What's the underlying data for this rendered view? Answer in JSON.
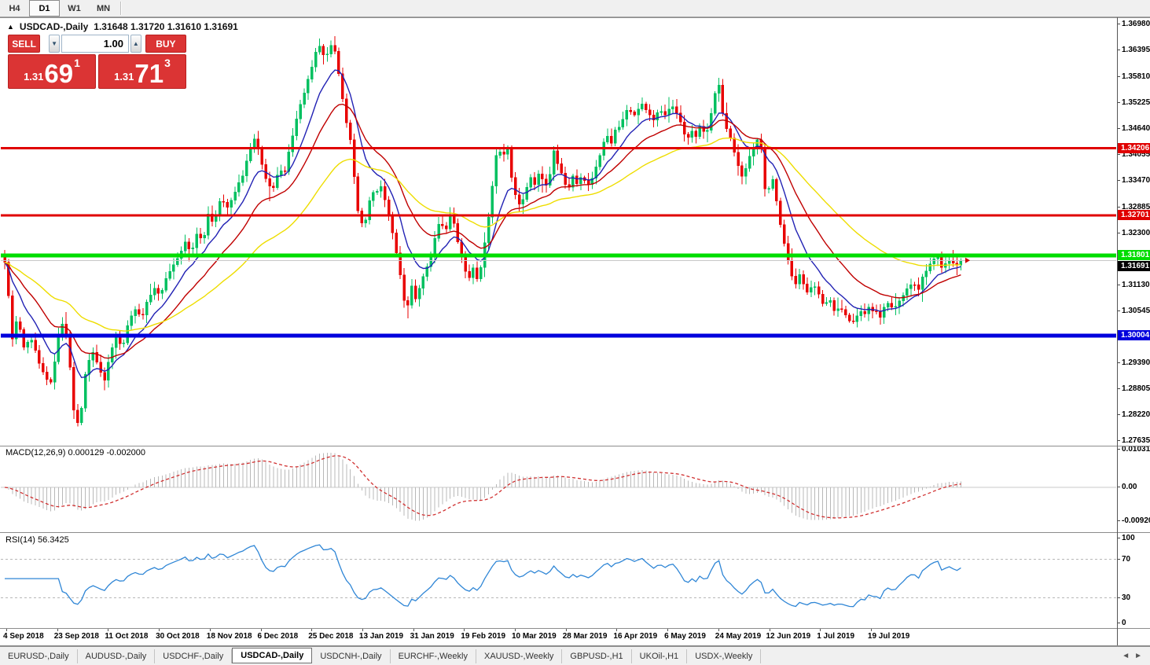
{
  "toolbar": {
    "timeframes": [
      {
        "label": "H4",
        "active": false
      },
      {
        "label": "D1",
        "active": true
      },
      {
        "label": "W1",
        "active": false
      },
      {
        "label": "MN",
        "active": false
      }
    ]
  },
  "titlebar": {
    "symbol": "USDCAD-,Daily",
    "ohlc": "1.31648 1.31720 1.31610 1.31691"
  },
  "trade": {
    "sell_label": "SELL",
    "buy_label": "BUY",
    "volume": "1.00",
    "sell_big": {
      "prefix": "1.31",
      "main": "69",
      "sup": "1"
    },
    "buy_big": {
      "prefix": "1.31",
      "main": "71",
      "sup": "3"
    },
    "button_color": "#DB3434"
  },
  "chart_data": {
    "type": "candlestick",
    "symbol": "USDCAD-,Daily",
    "bars": 250,
    "candle_colors": {
      "up": "#00C060",
      "down": "#E80000"
    },
    "price_axis_ticks": [
      {
        "v": 1.3698,
        "t": "1.36980"
      },
      {
        "v": 1.36395,
        "t": "1.36395"
      },
      {
        "v": 1.3581,
        "t": "1.35810"
      },
      {
        "v": 1.35225,
        "t": "1.35225"
      },
      {
        "v": 1.3464,
        "t": "1.34640"
      },
      {
        "v": 1.34055,
        "t": "1.34055"
      },
      {
        "v": 1.3347,
        "t": "1.33470"
      },
      {
        "v": 1.32885,
        "t": "1.32885"
      },
      {
        "v": 1.323,
        "t": "1.32300"
      },
      {
        "v": 1.3113,
        "t": "1.31130"
      },
      {
        "v": 1.30545,
        "t": "1.30545"
      },
      {
        "v": 1.2939,
        "t": "1.29390"
      },
      {
        "v": 1.28805,
        "t": "1.28805"
      },
      {
        "v": 1.2822,
        "t": "1.28220"
      },
      {
        "v": 1.27635,
        "t": "1.27635"
      }
    ],
    "hlines": [
      {
        "price": 1.34206,
        "label": "1.34206",
        "color": "#E00000",
        "width": 3
      },
      {
        "price": 1.32701,
        "label": "1.32701",
        "color": "#E00000",
        "width": 3
      },
      {
        "price": 1.31801,
        "label": "1.31801",
        "color": "#00DD00",
        "width": 5
      },
      {
        "price": 1.30004,
        "label": "1.30004",
        "color": "#0000DD",
        "width": 5
      }
    ],
    "current_price": {
      "value": 1.31691,
      "label": "1.31691",
      "line_color": "#C8C8C8",
      "chip_bg": "#000000"
    },
    "moving_averages": [
      {
        "period": 10,
        "color": "#2222B4"
      },
      {
        "period": 22,
        "color": "#C00000"
      },
      {
        "period": 50,
        "color": "#EEDD00"
      }
    ],
    "date_ticks": [
      "4 Sep 2018",
      "23 Sep 2018",
      "11 Oct 2018",
      "30 Oct 2018",
      "18 Nov 2018",
      "6 Dec 2018",
      "25 Dec 2018",
      "13 Jan 2019",
      "31 Jan 2019",
      "19 Feb 2019",
      "10 Mar 2019",
      "28 Mar 2019",
      "16 Apr 2019",
      "6 May 2019",
      "24 May 2019",
      "12 Jun 2019",
      "1 Jul 2019",
      "19 Jul 2019"
    ],
    "price_anchors": [
      [
        0,
        1.319
      ],
      [
        8,
        1.316
      ],
      [
        15,
        1.2985
      ],
      [
        22,
        1.304
      ],
      [
        30,
        1.2975
      ],
      [
        40,
        1.2995
      ],
      [
        50,
        1.294
      ],
      [
        58,
        1.2905
      ],
      [
        66,
        1.289
      ],
      [
        74,
        1.3005
      ],
      [
        82,
        1.3035
      ],
      [
        89,
        1.293
      ],
      [
        96,
        1.279
      ],
      [
        103,
        1.2825
      ],
      [
        110,
        1.294
      ],
      [
        118,
        1.296
      ],
      [
        126,
        1.2935
      ],
      [
        132,
        1.289
      ],
      [
        140,
        1.2955
      ],
      [
        148,
        1.3
      ],
      [
        156,
        1.2975
      ],
      [
        164,
        1.304
      ],
      [
        172,
        1.306
      ],
      [
        180,
        1.3035
      ],
      [
        188,
        1.308
      ],
      [
        196,
        1.311
      ],
      [
        204,
        1.3085
      ],
      [
        212,
        1.313
      ],
      [
        220,
        1.3155
      ],
      [
        228,
        1.318
      ],
      [
        236,
        1.321
      ],
      [
        244,
        1.319
      ],
      [
        252,
        1.324
      ],
      [
        258,
        1.3205
      ],
      [
        265,
        1.3275
      ],
      [
        272,
        1.325
      ],
      [
        280,
        1.3305
      ],
      [
        290,
        1.329
      ],
      [
        300,
        1.333
      ],
      [
        310,
        1.3365
      ],
      [
        318,
        1.342
      ],
      [
        325,
        1.345
      ],
      [
        332,
        1.339
      ],
      [
        340,
        1.3345
      ],
      [
        348,
        1.333
      ],
      [
        355,
        1.3375
      ],
      [
        362,
        1.336
      ],
      [
        370,
        1.3435
      ],
      [
        378,
        1.349
      ],
      [
        386,
        1.354
      ],
      [
        394,
        1.359
      ],
      [
        401,
        1.363
      ],
      [
        408,
        1.365
      ],
      [
        414,
        1.362
      ],
      [
        420,
        1.3655
      ],
      [
        427,
        1.364
      ],
      [
        433,
        1.356
      ],
      [
        440,
        1.348
      ],
      [
        447,
        1.343
      ],
      [
        453,
        1.33
      ],
      [
        458,
        1.3265
      ],
      [
        463,
        1.3235
      ],
      [
        468,
        1.329
      ],
      [
        473,
        1.333
      ],
      [
        478,
        1.331
      ],
      [
        483,
        1.334
      ],
      [
        490,
        1.33
      ],
      [
        497,
        1.325
      ],
      [
        503,
        1.32
      ],
      [
        508,
        1.315
      ],
      [
        513,
        1.3085
      ],
      [
        518,
        1.306
      ],
      [
        524,
        1.311
      ],
      [
        530,
        1.308
      ],
      [
        536,
        1.3125
      ],
      [
        542,
        1.315
      ],
      [
        548,
        1.318
      ],
      [
        554,
        1.323
      ],
      [
        560,
        1.3255
      ],
      [
        566,
        1.323
      ],
      [
        572,
        1.3275
      ],
      [
        578,
        1.3245
      ],
      [
        584,
        1.32
      ],
      [
        590,
        1.316
      ],
      [
        596,
        1.313
      ],
      [
        602,
        1.3155
      ],
      [
        608,
        1.312
      ],
      [
        614,
        1.318
      ],
      [
        620,
        1.325
      ],
      [
        626,
        1.333
      ],
      [
        632,
        1.342
      ],
      [
        639,
        1.34
      ],
      [
        645,
        1.343
      ],
      [
        651,
        1.3355
      ],
      [
        657,
        1.331
      ],
      [
        663,
        1.329
      ],
      [
        669,
        1.333
      ],
      [
        675,
        1.336
      ],
      [
        681,
        1.334
      ],
      [
        687,
        1.337
      ],
      [
        693,
        1.3335
      ],
      [
        699,
        1.3355
      ],
      [
        705,
        1.3415
      ],
      [
        711,
        1.338
      ],
      [
        717,
        1.335
      ],
      [
        723,
        1.333
      ],
      [
        729,
        1.336
      ],
      [
        735,
        1.334
      ],
      [
        741,
        1.3365
      ],
      [
        747,
        1.333
      ],
      [
        753,
        1.3355
      ],
      [
        759,
        1.338
      ],
      [
        765,
        1.342
      ],
      [
        771,
        1.345
      ],
      [
        777,
        1.343
      ],
      [
        783,
        1.346
      ],
      [
        791,
        1.348
      ],
      [
        799,
        1.351
      ],
      [
        807,
        1.3495
      ],
      [
        815,
        1.352
      ],
      [
        823,
        1.3505
      ],
      [
        831,
        1.348
      ],
      [
        839,
        1.351
      ],
      [
        847,
        1.349
      ],
      [
        855,
        1.352
      ],
      [
        861,
        1.35
      ],
      [
        867,
        1.347
      ],
      [
        873,
        1.344
      ],
      [
        879,
        1.346
      ],
      [
        885,
        1.3445
      ],
      [
        891,
        1.347
      ],
      [
        897,
        1.345
      ],
      [
        903,
        1.3475
      ],
      [
        909,
        1.354
      ],
      [
        915,
        1.356
      ],
      [
        921,
        1.348
      ],
      [
        927,
        1.345
      ],
      [
        933,
        1.342
      ],
      [
        939,
        1.338
      ],
      [
        945,
        1.335
      ],
      [
        951,
        1.339
      ],
      [
        957,
        1.342
      ],
      [
        963,
        1.344
      ],
      [
        969,
        1.342
      ],
      [
        975,
        1.329
      ],
      [
        981,
        1.337
      ],
      [
        987,
        1.331
      ],
      [
        993,
        1.325
      ],
      [
        999,
        1.32
      ],
      [
        1005,
        1.315
      ],
      [
        1011,
        1.311
      ],
      [
        1017,
        1.314
      ],
      [
        1023,
        1.311
      ],
      [
        1029,
        1.309
      ],
      [
        1035,
        1.312
      ],
      [
        1041,
        1.31
      ],
      [
        1047,
        1.307
      ],
      [
        1054,
        1.3085
      ],
      [
        1062,
        1.305
      ],
      [
        1070,
        1.3065
      ],
      [
        1078,
        1.304
      ],
      [
        1086,
        1.303
      ],
      [
        1094,
        1.306
      ],
      [
        1100,
        1.3045
      ],
      [
        1106,
        1.307
      ],
      [
        1112,
        1.3055
      ],
      [
        1120,
        1.3045
      ],
      [
        1128,
        1.3075
      ],
      [
        1136,
        1.306
      ],
      [
        1144,
        1.308
      ],
      [
        1152,
        1.3095
      ],
      [
        1160,
        1.312
      ],
      [
        1168,
        1.3105
      ],
      [
        1176,
        1.314
      ],
      [
        1184,
        1.3165
      ],
      [
        1192,
        1.318
      ],
      [
        1200,
        1.315
      ],
      [
        1208,
        1.3172
      ],
      [
        1216,
        1.316
      ],
      [
        1222,
        1.31691
      ]
    ],
    "macd": {
      "label": "MACD(12,26,9)",
      "value": "0.000129",
      "signal_value": "-0.002000",
      "params": [
        12,
        26,
        9
      ],
      "axis_max": "0.010311",
      "axis_zero": "0.00",
      "axis_min": "-0.009203",
      "hist_color": "#B8B8B8",
      "signal_color": "#D03030"
    },
    "rsi": {
      "label": "RSI(14)",
      "period": 14,
      "value": "56.3425",
      "levels": [
        70,
        30
      ],
      "axis": [
        "100",
        "70",
        "30",
        "0"
      ],
      "color": "#2F86D6"
    }
  },
  "tabs": {
    "items": [
      {
        "label": "EURUSD-,Daily",
        "active": false
      },
      {
        "label": "AUDUSD-,Daily",
        "active": false
      },
      {
        "label": "USDCHF-,Daily",
        "active": false
      },
      {
        "label": "USDCAD-,Daily",
        "active": true
      },
      {
        "label": "USDCNH-,Daily",
        "active": false
      },
      {
        "label": "EURCHF-,Weekly",
        "active": false
      },
      {
        "label": "XAUUSD-,Weekly",
        "active": false
      },
      {
        "label": "GBPUSD-,H1",
        "active": false
      },
      {
        "label": "UKOil-,H1",
        "active": false
      },
      {
        "label": "USDX-,Weekly",
        "active": false
      }
    ],
    "nav_left": "◄",
    "nav_right": "►"
  }
}
